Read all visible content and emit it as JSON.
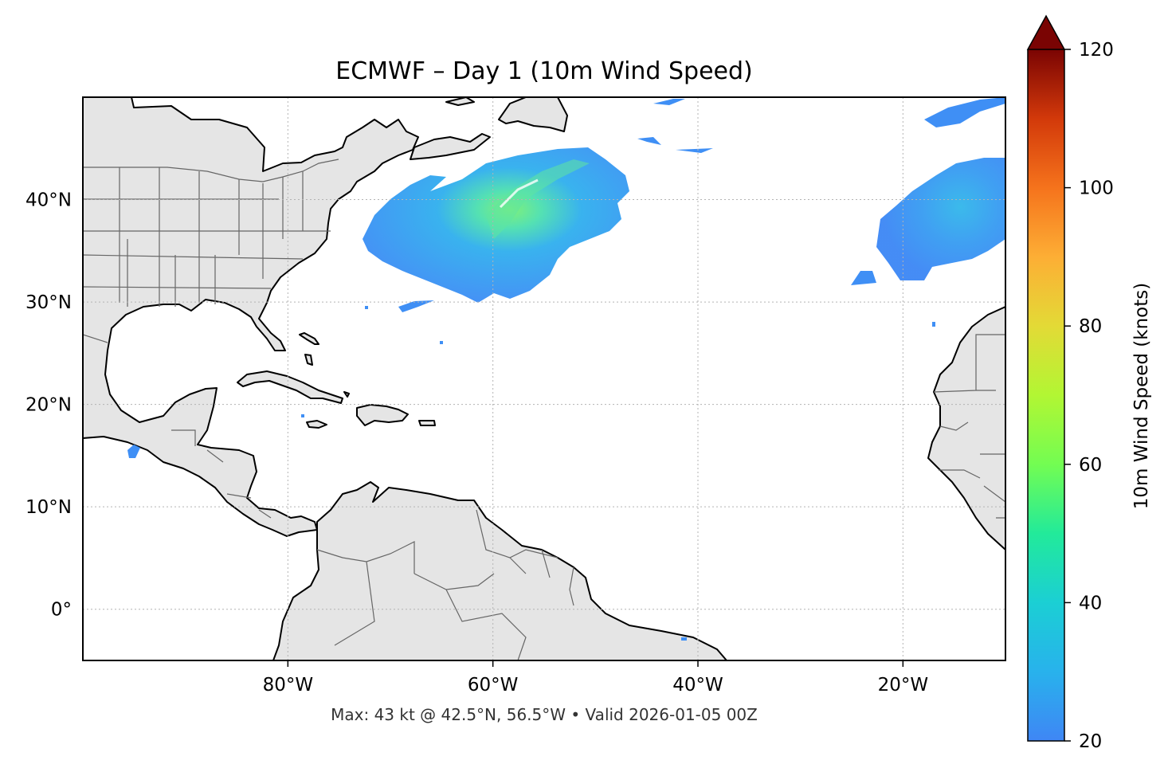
{
  "title": "ECMWF – Day 1 (10m Wind Speed)",
  "footer": "Max: 43 kt @ 42.5°N, 56.5°W • Valid 2026-01-05 00Z",
  "map": {
    "extent": {
      "lon": [
        -100,
        -10
      ],
      "lat": [
        -5,
        50
      ]
    },
    "x_ticks": [
      {
        "lon": -80,
        "label": "80°W"
      },
      {
        "lon": -60,
        "label": "60°W"
      },
      {
        "lon": -40,
        "label": "40°W"
      },
      {
        "lon": -20,
        "label": "20°W"
      }
    ],
    "y_ticks": [
      {
        "lat": 40,
        "label": "40°N"
      },
      {
        "lat": 30,
        "label": "30°N"
      },
      {
        "lat": 20,
        "label": "20°N"
      },
      {
        "lat": 10,
        "label": "10°N"
      },
      {
        "lat": 0,
        "label": "0°"
      }
    ],
    "gridlines": true,
    "land_color": "#e5e5e5",
    "coast_color": "#000000",
    "border_color": "#666666"
  },
  "colorbar": {
    "label": "10m Wind Speed (knots)",
    "min": 20,
    "max": 120,
    "extend": "max",
    "cmap": "turbo",
    "ticks": [
      {
        "value": 20,
        "label": "20"
      },
      {
        "value": 40,
        "label": "40"
      },
      {
        "value": 60,
        "label": "60"
      },
      {
        "value": 80,
        "label": "80"
      },
      {
        "value": 100,
        "label": "100"
      },
      {
        "value": 120,
        "label": "120"
      }
    ],
    "extend_color": "#7a0403"
  },
  "wind_areas": [
    {
      "name": "storm-west-atlantic",
      "max_kt": 43,
      "max_lat": 42.5,
      "max_lon": -56.5
    },
    {
      "name": "storm-east-atlantic"
    }
  ]
}
